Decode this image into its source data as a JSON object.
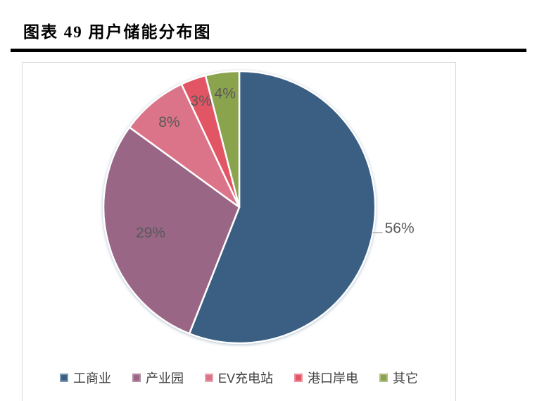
{
  "figure": {
    "caption": "图表 49 用户储能分布图"
  },
  "chart_data": {
    "type": "pie",
    "title": "",
    "categories": [
      "工商业",
      "产业园",
      "EV充电站",
      "港口岸电",
      "其它"
    ],
    "values": [
      56,
      29,
      8,
      3,
      4
    ],
    "unit": "%",
    "data_labels": [
      "56%",
      "29%",
      "8%",
      "3%",
      "4%"
    ],
    "colors": [
      "#3A5F82",
      "#996685",
      "#DB7489",
      "#E25565",
      "#8AA34D"
    ],
    "marker_border_colors": [
      "#7E99B4",
      "#B28FA6",
      "#E9A5B2",
      "#ED93A0",
      "#AFBF85"
    ],
    "label_color": "#595959",
    "legend_text_color": "#404040",
    "leader_line_color": "#A6A6A6",
    "legend_position": "bottom",
    "start_angle_deg": 0,
    "direction": "clockwise",
    "grid": false
  }
}
